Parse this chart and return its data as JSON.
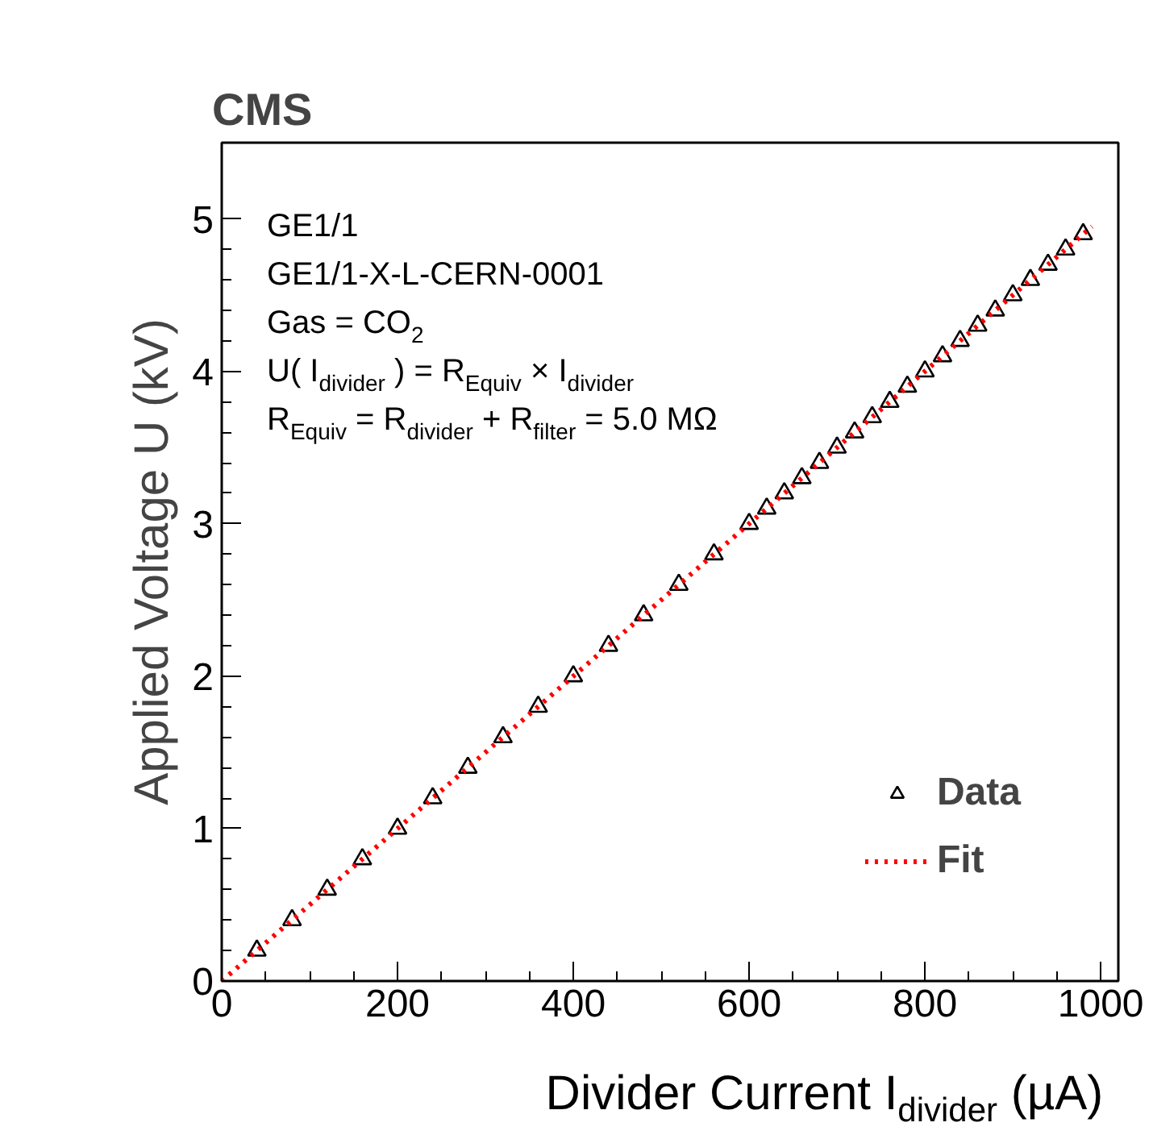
{
  "chart_data": {
    "type": "scatter",
    "title": "CMS",
    "xlabel": "Divider Current I$_{divider}$ (µA)",
    "ylabel": "Applied Voltage U (kV)",
    "x": [
      40,
      80,
      120,
      160,
      200,
      240,
      280,
      320,
      360,
      400,
      440,
      480,
      520,
      560,
      600,
      620,
      640,
      660,
      680,
      700,
      720,
      740,
      760,
      780,
      800,
      820,
      840,
      860,
      880,
      900,
      920,
      940,
      960,
      980
    ],
    "series": [
      {
        "name": "Data",
        "marker": "triangle",
        "color": "#000000",
        "values": [
          0.2,
          0.4,
          0.6,
          0.8,
          1.0,
          1.2,
          1.4,
          1.6,
          1.8,
          2.0,
          2.2,
          2.4,
          2.6,
          2.8,
          3.0,
          3.1,
          3.2,
          3.3,
          3.4,
          3.5,
          3.6,
          3.7,
          3.8,
          3.9,
          4.0,
          4.1,
          4.2,
          4.3,
          4.4,
          4.5,
          4.6,
          4.7,
          4.8,
          4.9
        ]
      },
      {
        "name": "Fit",
        "type": "line",
        "color": "#ff0000",
        "line_style": "dotted",
        "x": [
          0,
          990
        ],
        "values": [
          0,
          4.95
        ]
      }
    ],
    "annotations": [
      "GE1/1",
      "GE1/1-X-L-CERN-0001",
      "Gas = CO$_{2}$",
      "U( I$_{divider}$ ) = R$_{Equiv}$ × I$_{divider}$",
      "R$_{Equiv}$ = R$_{divider}$ + R$_{filter}$ = 5.0 MΩ"
    ],
    "xlim": [
      0,
      1020
    ],
    "ylim": [
      0,
      5.5
    ],
    "xticks": [
      0,
      200,
      400,
      600,
      800,
      1000
    ],
    "yticks": [
      0,
      1,
      2,
      3,
      4,
      5
    ],
    "grid": false,
    "legend": "bottom right"
  }
}
